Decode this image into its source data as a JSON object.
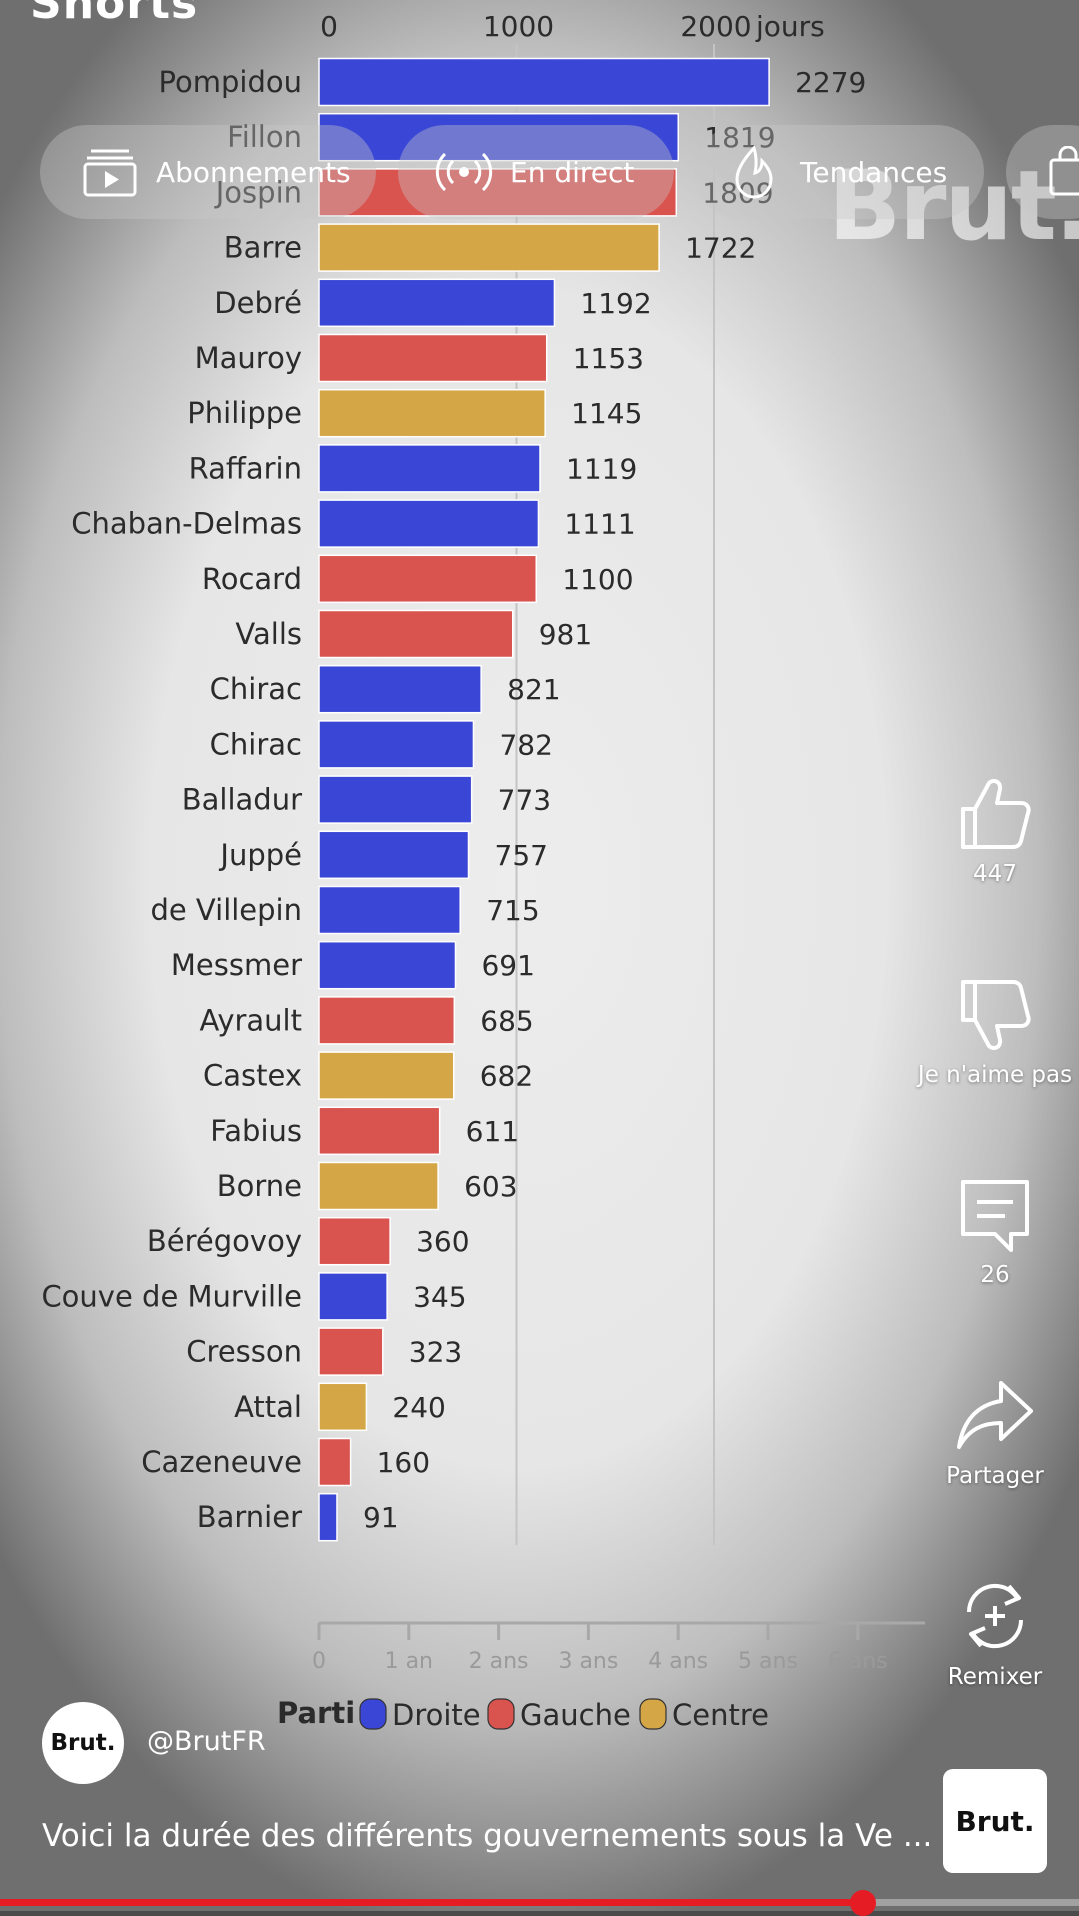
{
  "app": {
    "shorts_label": "Shorts"
  },
  "top_nav": {
    "chips": [
      {
        "label": "Abonnements",
        "icon": "subscriptions-icon"
      },
      {
        "label": "En direct",
        "icon": "live-icon"
      },
      {
        "label": "Tendances",
        "icon": "trending-icon"
      }
    ]
  },
  "watermark": "Brut.",
  "chart_data": {
    "type": "bar",
    "orientation": "horizontal",
    "top_axis_ticks": [
      "0",
      "1000",
      "2000"
    ],
    "top_axis_unit": "jours",
    "xlim": [
      0,
      2600
    ],
    "categories": [
      "Pompidou",
      "Fillon",
      "Jospin",
      "Barre",
      "Debré",
      "Mauroy",
      "Philippe",
      "Raffarin",
      "Chaban-Delmas",
      "Rocard",
      "Valls",
      "Chirac",
      "Chirac",
      "Balladur",
      "Juppé",
      "de Villepin",
      "Messmer",
      "Ayrault",
      "Castex",
      "Fabius",
      "Borne",
      "Bérégovoy",
      "Couve de Murville",
      "Cresson",
      "Attal",
      "Cazeneuve",
      "Barnier"
    ],
    "values": [
      2279,
      1819,
      1809,
      1722,
      1192,
      1153,
      1145,
      1119,
      1111,
      1100,
      981,
      821,
      782,
      773,
      757,
      715,
      691,
      685,
      682,
      611,
      603,
      360,
      345,
      323,
      240,
      160,
      91
    ],
    "value_labels": [
      "2279",
      "1819",
      "1809",
      "1722",
      "1192",
      "1153",
      "1145",
      "1119",
      "1111",
      "1100",
      "981",
      "821",
      "782",
      "773",
      "757",
      "715",
      "691",
      "685",
      "682",
      "611",
      "603",
      "360",
      "345",
      "323",
      "240",
      "160",
      "91"
    ],
    "party": [
      "Droite",
      "Droite",
      "Gauche",
      "Centre",
      "Droite",
      "Gauche",
      "Centre",
      "Droite",
      "Droite",
      "Gauche",
      "Gauche",
      "Droite",
      "Droite",
      "Droite",
      "Droite",
      "Droite",
      "Droite",
      "Gauche",
      "Centre",
      "Gauche",
      "Centre",
      "Gauche",
      "Droite",
      "Gauche",
      "Centre",
      "Gauche",
      "Droite"
    ],
    "bottom_axis_ticks": [
      "0",
      "1 an",
      "2 ans",
      "3 ans",
      "4 ans",
      "5 ans",
      "6 ans"
    ],
    "legend_title": "Parti",
    "legend": [
      {
        "name": "Droite",
        "color": "#3a47d6"
      },
      {
        "name": "Gauche",
        "color": "#d9534f"
      },
      {
        "name": "Centre",
        "color": "#d4a645"
      }
    ],
    "grid": true
  },
  "actions": {
    "like_count": "447",
    "dislike_label": "Je n'aime pas",
    "comment_count": "26",
    "share_label": "Partager",
    "remix_label": "Remixer"
  },
  "channel": {
    "avatar_text": "Brut.",
    "handle": "@BrutFR"
  },
  "video": {
    "caption": "Voici la durée des différents gouvernements sous la Ve  ...",
    "thumb_text": "Brut.",
    "progress": 0.8
  },
  "colors": {
    "accent": "#e51c23"
  }
}
